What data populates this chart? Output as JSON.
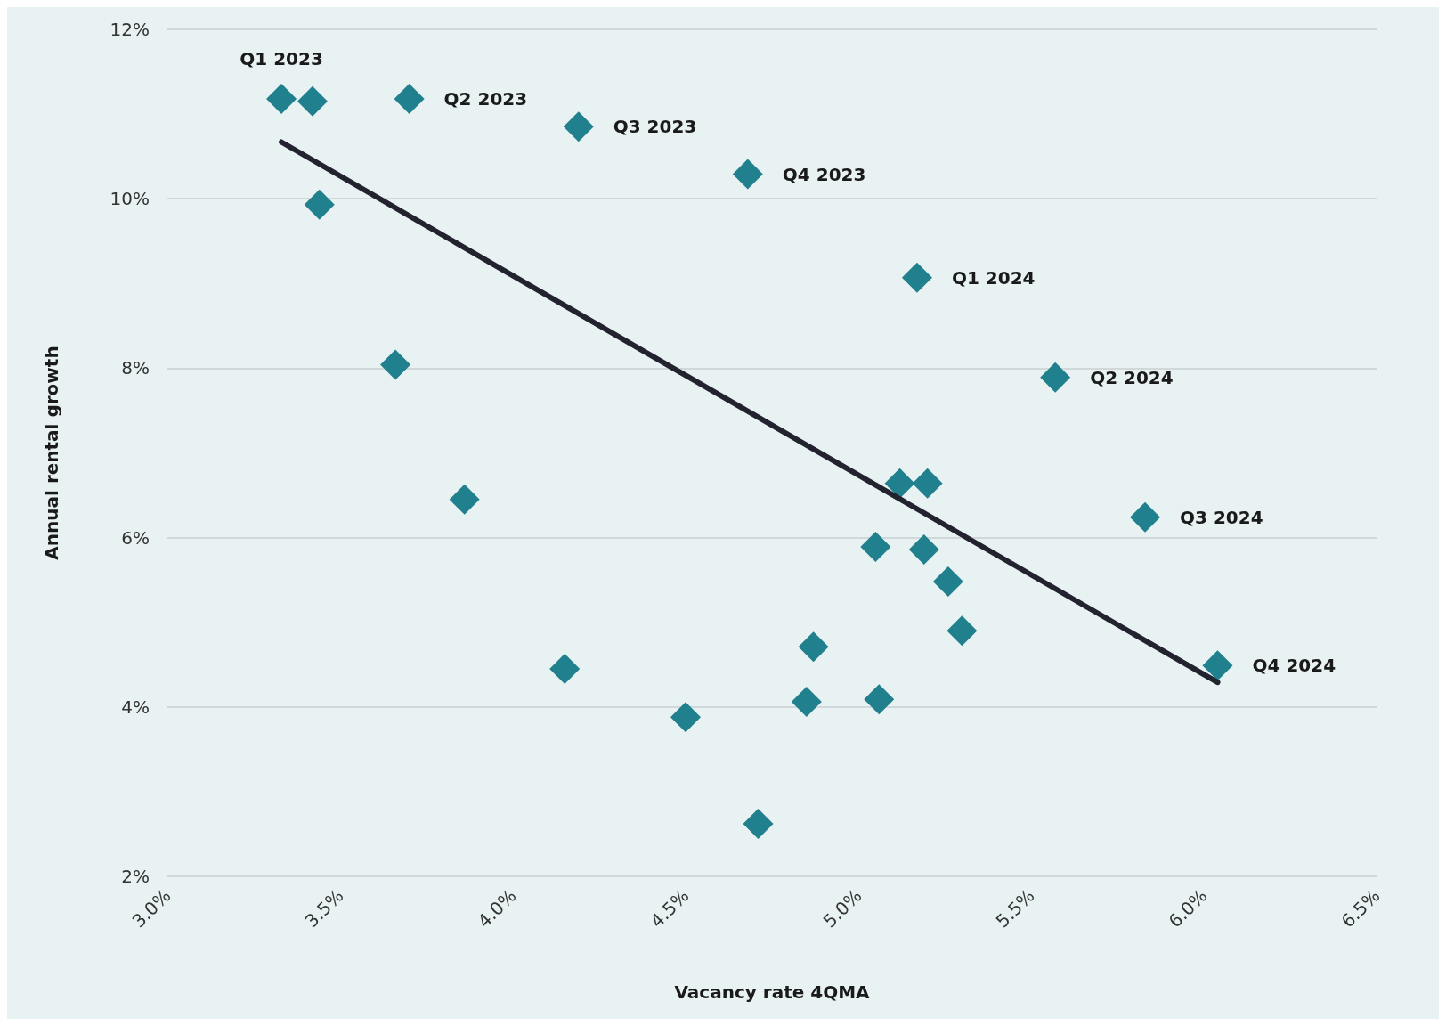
{
  "chart_data": {
    "type": "scatter",
    "xlabel": "Vacancy rate 4QMA",
    "ylabel": "Annual rental growth",
    "xlim": [
      3.0,
      6.5
    ],
    "xticks": [
      {
        "value": 3.0,
        "label": "3.0%"
      },
      {
        "value": 3.5,
        "label": "3.5%"
      },
      {
        "value": 4.0,
        "label": "4.0%"
      },
      {
        "value": 4.5,
        "label": "4.5%"
      },
      {
        "value": 5.0,
        "label": "5.0%"
      },
      {
        "value": 5.5,
        "label": "5.5%"
      },
      {
        "value": 6.0,
        "label": "6.0%"
      },
      {
        "value": 6.5,
        "label": "6.5%"
      }
    ],
    "ylim": [
      2,
      12
    ],
    "yticks": [
      {
        "value": 2,
        "label": "2%"
      },
      {
        "value": 4,
        "label": "4%"
      },
      {
        "value": 6,
        "label": "6%"
      },
      {
        "value": 8,
        "label": "8%"
      },
      {
        "value": 10,
        "label": "10%"
      },
      {
        "value": 12,
        "label": "12%"
      }
    ],
    "grid": "y",
    "marker": "diamond",
    "series": [
      {
        "color": "#20808d",
        "x": [
          3.33,
          3.42,
          3.7,
          3.44,
          3.66,
          3.86,
          4.19,
          4.15,
          4.5,
          4.68,
          4.71,
          4.85,
          4.87,
          5.05,
          5.06,
          5.12,
          5.17,
          5.2,
          5.19,
          5.26,
          5.3,
          5.57,
          5.83,
          6.04
        ],
        "values": [
          11.18,
          11.15,
          11.18,
          9.93,
          8.04,
          6.45,
          10.85,
          4.45,
          3.88,
          10.29,
          2.62,
          4.06,
          4.71,
          5.89,
          4.09,
          6.64,
          9.07,
          6.64,
          5.86,
          5.48,
          4.9,
          7.89,
          6.24,
          4.49
        ],
        "value_labels": [
          "Q1 2023",
          null,
          "Q2 2023",
          null,
          null,
          null,
          "Q3 2023",
          null,
          null,
          "Q4 2023",
          null,
          null,
          null,
          null,
          null,
          null,
          "Q1 2024",
          null,
          null,
          null,
          null,
          "Q2 2024",
          "Q3 2024",
          "Q4 2024"
        ]
      },
      {
        "type": "line",
        "color": "#23232f",
        "x": [
          3.33,
          6.04
        ],
        "values": [
          10.67,
          4.29
        ],
        "marker": "none",
        "line_style": "solid"
      }
    ]
  }
}
